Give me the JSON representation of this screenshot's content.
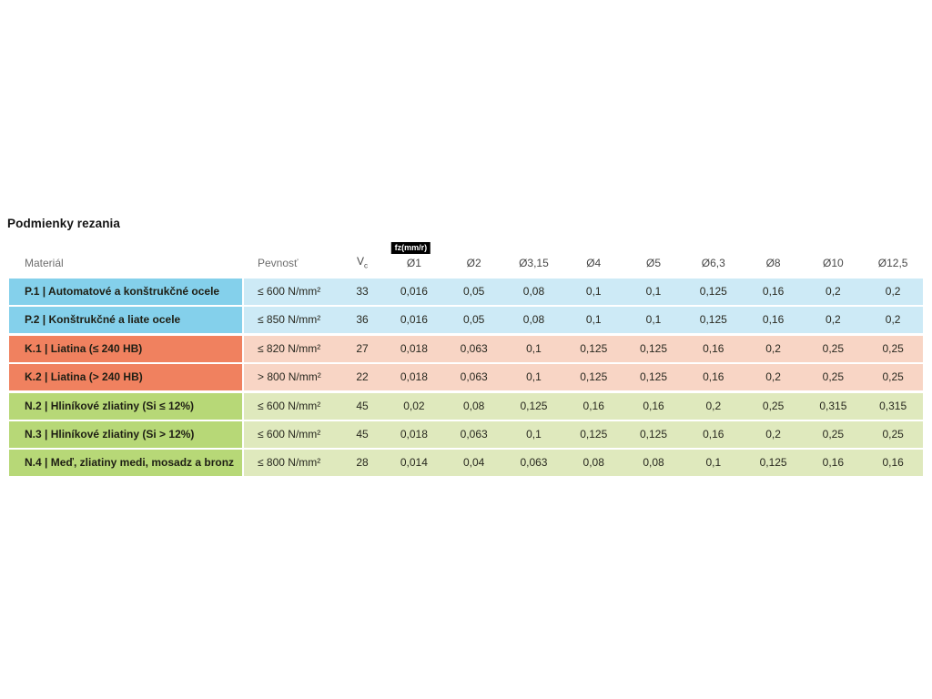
{
  "page": {
    "title": "Podmienky rezania"
  },
  "table": {
    "badge_label": "fz(mm/r)",
    "headers": {
      "material": "Materiál",
      "pevnost": "Pevnosť",
      "vc_main": "V",
      "vc_sub": "c",
      "diameters": [
        "Ø1",
        "Ø2",
        "Ø3,15",
        "Ø4",
        "Ø5",
        "Ø6,3",
        "Ø8",
        "Ø10",
        "Ø12,5"
      ]
    },
    "group_colors": {
      "P": {
        "label_bg": "#84d0eb",
        "cell_bg": "#cdeaf6"
      },
      "K": {
        "label_bg": "#f0815f",
        "cell_bg": "#f8d5c5"
      },
      "N": {
        "label_bg": "#b7d877",
        "cell_bg": "#dfe9bd"
      }
    },
    "rows": [
      {
        "group": "P",
        "label": "P.1 | Automatové a konštrukčné ocele",
        "pevnost": "≤ 600 N/mm²",
        "vc": "33",
        "values": [
          "0,016",
          "0,05",
          "0,08",
          "0,1",
          "0,1",
          "0,125",
          "0,16",
          "0,2",
          "0,2"
        ]
      },
      {
        "group": "P",
        "label": "P.2 | Konštrukčné a liate ocele",
        "pevnost": "≤ 850 N/mm²",
        "vc": "36",
        "values": [
          "0,016",
          "0,05",
          "0,08",
          "0,1",
          "0,1",
          "0,125",
          "0,16",
          "0,2",
          "0,2"
        ]
      },
      {
        "group": "K",
        "label": "K.1 | Liatina (≤ 240 HB)",
        "pevnost": "≤ 820 N/mm²",
        "vc": "27",
        "values": [
          "0,018",
          "0,063",
          "0,1",
          "0,125",
          "0,125",
          "0,16",
          "0,2",
          "0,25",
          "0,25"
        ]
      },
      {
        "group": "K",
        "label": "K.2 | Liatina (> 240 HB)",
        "pevnost": "> 800 N/mm²",
        "vc": "22",
        "values": [
          "0,018",
          "0,063",
          "0,1",
          "0,125",
          "0,125",
          "0,16",
          "0,2",
          "0,25",
          "0,25"
        ]
      },
      {
        "group": "N",
        "label": "N.2 | Hliníkové zliatiny (Si ≤ 12%)",
        "pevnost": "≤ 600 N/mm²",
        "vc": "45",
        "values": [
          "0,02",
          "0,08",
          "0,125",
          "0,16",
          "0,16",
          "0,2",
          "0,25",
          "0,315",
          "0,315"
        ]
      },
      {
        "group": "N",
        "label": "N.3 | Hliníkové zliatiny (Si > 12%)",
        "pevnost": "≤ 600 N/mm²",
        "vc": "45",
        "values": [
          "0,018",
          "0,063",
          "0,1",
          "0,125",
          "0,125",
          "0,16",
          "0,2",
          "0,25",
          "0,25"
        ]
      },
      {
        "group": "N",
        "label": "N.4 | Meď, zliatiny medi, mosadz a bronz",
        "pevnost": "≤ 800 N/mm²",
        "vc": "28",
        "values": [
          "0,014",
          "0,04",
          "0,063",
          "0,08",
          "0,08",
          "0,1",
          "0,125",
          "0,16",
          "0,16"
        ]
      }
    ]
  },
  "chart_data": {
    "type": "table",
    "title": "Podmienky rezania",
    "columns": [
      "Materiál",
      "Pevnosť",
      "Vc",
      "Ø1",
      "Ø2",
      "Ø3,15",
      "Ø4",
      "Ø5",
      "Ø6,3",
      "Ø8",
      "Ø10",
      "Ø12,5"
    ],
    "unit_note": "fz(mm/r)",
    "rows": [
      [
        "P.1 | Automatové a konštrukčné ocele",
        "≤ 600 N/mm²",
        "33",
        "0,016",
        "0,05",
        "0,08",
        "0,1",
        "0,1",
        "0,125",
        "0,16",
        "0,2",
        "0,2"
      ],
      [
        "P.2 | Konštrukčné a liate ocele",
        "≤ 850 N/mm²",
        "36",
        "0,016",
        "0,05",
        "0,08",
        "0,1",
        "0,1",
        "0,125",
        "0,16",
        "0,2",
        "0,2"
      ],
      [
        "K.1 | Liatina (≤ 240 HB)",
        "≤ 820 N/mm²",
        "27",
        "0,018",
        "0,063",
        "0,1",
        "0,125",
        "0,125",
        "0,16",
        "0,2",
        "0,25",
        "0,25"
      ],
      [
        "K.2 | Liatina (> 240 HB)",
        "> 800 N/mm²",
        "22",
        "0,018",
        "0,063",
        "0,1",
        "0,125",
        "0,125",
        "0,16",
        "0,2",
        "0,25",
        "0,25"
      ],
      [
        "N.2 | Hliníkové zliatiny (Si ≤ 12%)",
        "≤ 600 N/mm²",
        "45",
        "0,02",
        "0,08",
        "0,125",
        "0,16",
        "0,16",
        "0,2",
        "0,25",
        "0,315",
        "0,315"
      ],
      [
        "N.3 | Hliníkové zliatiny (Si > 12%)",
        "≤ 600 N/mm²",
        "45",
        "0,018",
        "0,063",
        "0,1",
        "0,125",
        "0,125",
        "0,16",
        "0,2",
        "0,25",
        "0,25"
      ],
      [
        "N.4 | Meď, zliatiny medi, mosadz a bronz",
        "≤ 800 N/mm²",
        "28",
        "0,014",
        "0,04",
        "0,063",
        "0,08",
        "0,08",
        "0,1",
        "0,125",
        "0,16",
        "0,16"
      ]
    ],
    "row_group_colors": {
      "P": "#84d0eb",
      "K": "#f0815f",
      "N": "#b7d877"
    }
  }
}
